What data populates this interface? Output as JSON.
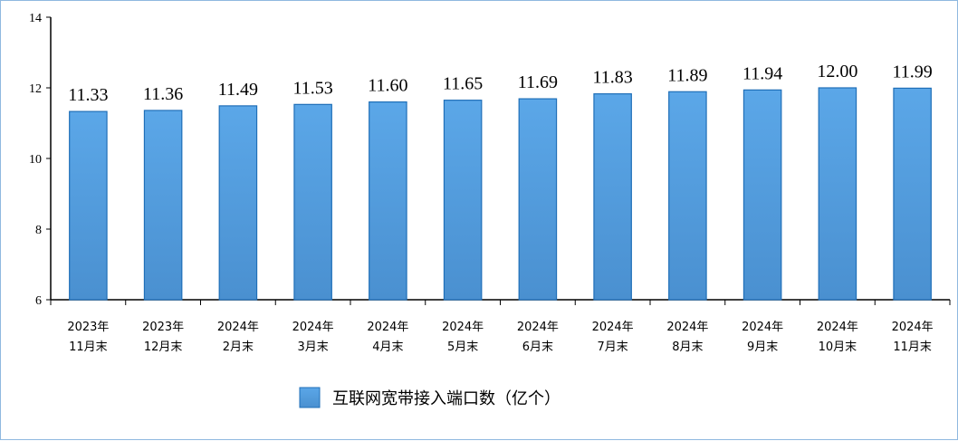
{
  "chart_data": {
    "type": "bar",
    "categories": [
      [
        "2023年",
        "11月末"
      ],
      [
        "2023年",
        "12月末"
      ],
      [
        "2024年",
        "2月末"
      ],
      [
        "2024年",
        "3月末"
      ],
      [
        "2024年",
        "4月末"
      ],
      [
        "2024年",
        "5月末"
      ],
      [
        "2024年",
        "6月末"
      ],
      [
        "2024年",
        "7月末"
      ],
      [
        "2024年",
        "8月末"
      ],
      [
        "2024年",
        "9月末"
      ],
      [
        "2024年",
        "10月末"
      ],
      [
        "2024年",
        "11月末"
      ]
    ],
    "series": [
      {
        "name": "互联网宽带接入端口数（亿个）",
        "values": [
          11.33,
          11.36,
          11.49,
          11.53,
          11.6,
          11.65,
          11.69,
          11.83,
          11.89,
          11.94,
          12.0,
          11.99
        ],
        "labels": [
          "11.33",
          "11.36",
          "11.49",
          "11.53",
          "11.60",
          "11.65",
          "11.69",
          "11.83",
          "11.89",
          "11.94",
          "12.00",
          "11.99"
        ]
      }
    ],
    "ylim": [
      6,
      14
    ],
    "yticks": [
      6,
      8,
      10,
      12,
      14
    ],
    "grid": false,
    "legend_position": "bottom-center",
    "colors": {
      "bar_fill": "#5ba7e8",
      "bar_fill_dark": "#4a90d0",
      "bar_stroke": "#1f6fb8",
      "axis": "#000000"
    }
  }
}
